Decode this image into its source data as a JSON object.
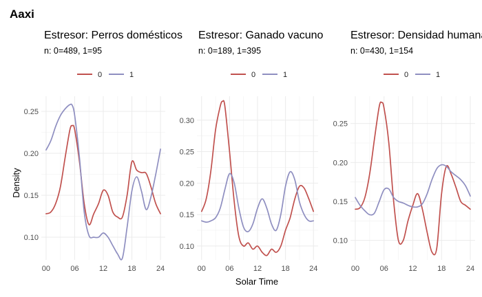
{
  "title": "Aaxi",
  "colors": {
    "series_0": "#c0504d",
    "series_1": "#8e8ec0"
  },
  "chart_data": [
    {
      "type": "line",
      "title": "Estresor: Perros domésticos",
      "subtitle": "n:  0=489, 1=95",
      "xlabel": "",
      "ylabel": "Density",
      "xlim": [
        -1,
        25
      ],
      "ylim": [
        0.073,
        0.268
      ],
      "x_ticks": [
        "00",
        "06",
        "12",
        "18",
        "24"
      ],
      "y_ticks": [
        "0.10",
        "0.15",
        "0.20",
        "0.25"
      ],
      "legend": [
        "0",
        "1"
      ],
      "series": [
        {
          "name": "0",
          "x": [
            0,
            1,
            2,
            3,
            4,
            5,
            5.5,
            6,
            7,
            8,
            9,
            10,
            11,
            12,
            13,
            14,
            15,
            16,
            17,
            18,
            19,
            20,
            21,
            22,
            23,
            24
          ],
          "y": [
            0.128,
            0.13,
            0.14,
            0.16,
            0.195,
            0.228,
            0.233,
            0.228,
            0.19,
            0.14,
            0.115,
            0.128,
            0.14,
            0.156,
            0.15,
            0.13,
            0.124,
            0.124,
            0.15,
            0.19,
            0.18,
            0.177,
            0.176,
            0.16,
            0.14,
            0.128
          ]
        },
        {
          "name": "1",
          "x": [
            0,
            1,
            2,
            3,
            4,
            5,
            5.5,
            6,
            7,
            8,
            9,
            10,
            11,
            12,
            13,
            14,
            15,
            16,
            17,
            18,
            19,
            20,
            21,
            22,
            23,
            24
          ],
          "y": [
            0.204,
            0.215,
            0.232,
            0.245,
            0.253,
            0.258,
            0.257,
            0.245,
            0.195,
            0.13,
            0.102,
            0.1,
            0.1,
            0.105,
            0.1,
            0.09,
            0.08,
            0.075,
            0.112,
            0.155,
            0.172,
            0.155,
            0.133,
            0.148,
            0.175,
            0.205
          ]
        }
      ]
    },
    {
      "type": "line",
      "title": "Estresor: Ganado vacuno",
      "subtitle": "n:  0=189, 1=395",
      "xlabel": "Solar Time",
      "ylabel": "",
      "xlim": [
        -1,
        25
      ],
      "ylim": [
        0.078,
        0.338
      ],
      "x_ticks": [
        "00",
        "06",
        "12",
        "18",
        "24"
      ],
      "y_ticks": [
        "0.10",
        "0.15",
        "0.20",
        "0.25",
        "0.30"
      ],
      "legend": [
        "0",
        "1"
      ],
      "series": [
        {
          "name": "0",
          "x": [
            0,
            1,
            2,
            3,
            4,
            4.5,
            5,
            6,
            7,
            8,
            9,
            10,
            11,
            12,
            13,
            14,
            15,
            16,
            17,
            18,
            19,
            20,
            21,
            22,
            23,
            24
          ],
          "y": [
            0.155,
            0.175,
            0.22,
            0.285,
            0.322,
            0.33,
            0.322,
            0.25,
            0.17,
            0.115,
            0.1,
            0.105,
            0.095,
            0.1,
            0.09,
            0.085,
            0.095,
            0.09,
            0.1,
            0.125,
            0.145,
            0.175,
            0.195,
            0.192,
            0.175,
            0.155
          ]
        },
        {
          "name": "1",
          "x": [
            0,
            1,
            2,
            3,
            4,
            5,
            6,
            7,
            8,
            9,
            10,
            11,
            12,
            13,
            14,
            15,
            16,
            17,
            18,
            19,
            20,
            21,
            22,
            23,
            24
          ],
          "y": [
            0.14,
            0.138,
            0.14,
            0.145,
            0.16,
            0.19,
            0.215,
            0.2,
            0.16,
            0.13,
            0.123,
            0.135,
            0.16,
            0.175,
            0.16,
            0.135,
            0.125,
            0.15,
            0.195,
            0.218,
            0.205,
            0.17,
            0.15,
            0.14,
            0.14
          ]
        }
      ]
    },
    {
      "type": "line",
      "title": "Estresor: Densidad humana",
      "subtitle": "n:  0=430, 1=154",
      "xlabel": "",
      "ylabel": "",
      "xlim": [
        -1,
        25
      ],
      "ylim": [
        0.075,
        0.285
      ],
      "x_ticks": [
        "00",
        "06",
        "12",
        "18",
        "24"
      ],
      "y_ticks": [
        "0.10",
        "0.15",
        "0.20",
        "0.25"
      ],
      "legend": [
        "0",
        "1"
      ],
      "series": [
        {
          "name": "0",
          "x": [
            0,
            1,
            2,
            3,
            4,
            5,
            5.5,
            6,
            7,
            8,
            9,
            10,
            11,
            12,
            13,
            14,
            15,
            16,
            17,
            18,
            19,
            20,
            21,
            22,
            23,
            24
          ],
          "y": [
            0.14,
            0.142,
            0.155,
            0.185,
            0.23,
            0.272,
            0.277,
            0.27,
            0.225,
            0.15,
            0.1,
            0.1,
            0.125,
            0.145,
            0.16,
            0.14,
            0.11,
            0.085,
            0.09,
            0.16,
            0.195,
            0.185,
            0.168,
            0.15,
            0.145,
            0.14
          ]
        },
        {
          "name": "1",
          "x": [
            0,
            1,
            2,
            3,
            4,
            5,
            6,
            7,
            8,
            9,
            10,
            11,
            12,
            13,
            14,
            15,
            16,
            17,
            18,
            19,
            20,
            21,
            22,
            23,
            24
          ],
          "y": [
            0.155,
            0.145,
            0.138,
            0.133,
            0.135,
            0.15,
            0.165,
            0.166,
            0.155,
            0.15,
            0.148,
            0.145,
            0.143,
            0.143,
            0.147,
            0.16,
            0.178,
            0.192,
            0.197,
            0.195,
            0.188,
            0.183,
            0.178,
            0.17,
            0.157
          ]
        }
      ]
    }
  ]
}
